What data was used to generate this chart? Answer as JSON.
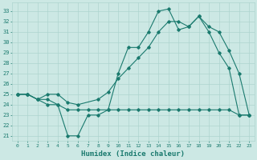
{
  "xlabel": "Humidex (Indice chaleur)",
  "xlim": [
    -0.5,
    23.5
  ],
  "ylim": [
    20.5,
    33.8
  ],
  "yticks": [
    21,
    22,
    23,
    24,
    25,
    26,
    27,
    28,
    29,
    30,
    31,
    32,
    33
  ],
  "xticks": [
    0,
    1,
    2,
    3,
    4,
    5,
    6,
    7,
    8,
    9,
    10,
    11,
    12,
    13,
    14,
    15,
    16,
    17,
    18,
    19,
    20,
    21,
    22,
    23
  ],
  "bg_color": "#cce8e4",
  "line_color": "#1a7a6e",
  "grid_color": "#aed4cf",
  "line1_x": [
    0,
    1,
    2,
    3,
    4,
    5,
    6,
    7,
    8,
    9,
    10,
    11,
    12,
    13,
    14,
    15,
    16,
    17,
    18,
    19,
    20,
    21,
    22,
    23
  ],
  "line1_y": [
    25,
    25,
    24.5,
    24,
    24,
    21,
    21,
    23,
    23,
    23.5,
    27,
    29.5,
    29.5,
    31,
    33,
    33.2,
    31.2,
    31.5,
    32.5,
    31,
    29,
    27.5,
    23,
    23
  ],
  "line2_x": [
    0,
    1,
    2,
    3,
    4,
    5,
    6,
    7,
    8,
    9,
    10,
    11,
    12,
    13,
    14,
    15,
    16,
    17,
    18,
    19,
    20,
    21,
    22,
    23
  ],
  "line2_y": [
    25,
    25,
    24.5,
    24.5,
    24,
    23.5,
    23.5,
    23.5,
    23.5,
    23.5,
    23.5,
    23.5,
    23.5,
    23.5,
    23.5,
    23.5,
    23.5,
    23.5,
    23.5,
    23.5,
    23.5,
    23.5,
    23,
    23
  ],
  "line3_x": [
    0,
    1,
    2,
    3,
    4,
    5,
    6,
    8,
    9,
    10,
    11,
    12,
    13,
    14,
    15,
    16,
    17,
    18,
    19,
    20,
    21,
    22,
    23
  ],
  "line3_y": [
    25,
    25,
    24.5,
    25,
    25,
    24.2,
    24,
    24.5,
    25.2,
    26.5,
    27.5,
    28.5,
    29.5,
    31,
    32,
    32,
    31.5,
    32.5,
    31.5,
    31,
    29.2,
    27,
    23
  ]
}
